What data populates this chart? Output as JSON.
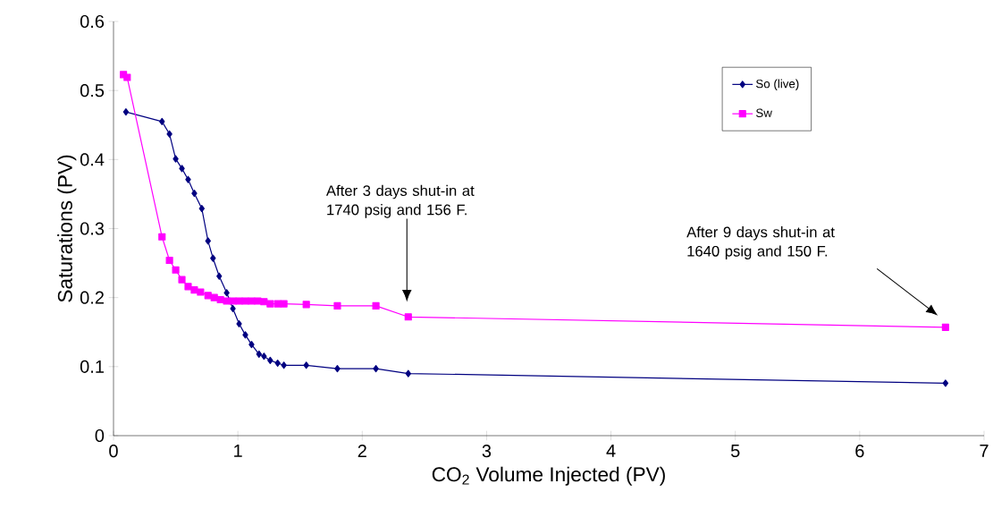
{
  "chart_data": {
    "type": "line",
    "xlabel": "CO$_{2}$ Volume Injected (PV)",
    "ylabel": "Saturations (PV)",
    "xlim": [
      0,
      7
    ],
    "xticks": [
      0,
      1,
      2,
      3,
      4,
      5,
      6,
      7
    ],
    "ylim": [
      0,
      0.6
    ],
    "yticks": [
      0,
      0.1,
      0.2,
      0.3,
      0.4,
      0.5,
      0.6
    ],
    "grid": false,
    "legend": "top right",
    "line_style": "solid",
    "series": [
      {
        "name": "So (live)",
        "color": "#000080",
        "marker": "diamond",
        "x": [
          0.1,
          0.39,
          0.45,
          0.5,
          0.55,
          0.6,
          0.65,
          0.71,
          0.76,
          0.8,
          0.85,
          0.91,
          0.96,
          1.01,
          1.06,
          1.11,
          1.17,
          1.21,
          1.26,
          1.32,
          1.37,
          1.55,
          1.8,
          2.11,
          2.37,
          6.69
        ],
        "values": [
          0.469,
          0.455,
          0.437,
          0.401,
          0.387,
          0.371,
          0.351,
          0.329,
          0.282,
          0.257,
          0.231,
          0.207,
          0.184,
          0.162,
          0.146,
          0.132,
          0.118,
          0.115,
          0.109,
          0.105,
          0.102,
          0.102,
          0.097,
          0.097,
          0.09,
          0.076
        ]
      },
      {
        "name": "Sw",
        "color": "#ff00ff",
        "marker": "square",
        "x": [
          0.08,
          0.11,
          0.39,
          0.45,
          0.5,
          0.55,
          0.6,
          0.65,
          0.7,
          0.76,
          0.81,
          0.86,
          0.91,
          0.96,
          1.01,
          1.06,
          1.11,
          1.16,
          1.21,
          1.26,
          1.32,
          1.37,
          1.55,
          1.8,
          2.11,
          2.37,
          6.69
        ],
        "values": [
          0.523,
          0.519,
          0.288,
          0.254,
          0.24,
          0.226,
          0.216,
          0.211,
          0.208,
          0.203,
          0.2,
          0.197,
          0.195,
          0.195,
          0.195,
          0.195,
          0.195,
          0.195,
          0.194,
          0.191,
          0.191,
          0.191,
          0.19,
          0.188,
          0.188,
          0.172,
          0.157
        ]
      }
    ],
    "annotations": [
      "After 3 days shut-in at 1740 psig and 156 F.",
      "After 9 days shut-in at 1640 psig and 150 F."
    ]
  }
}
